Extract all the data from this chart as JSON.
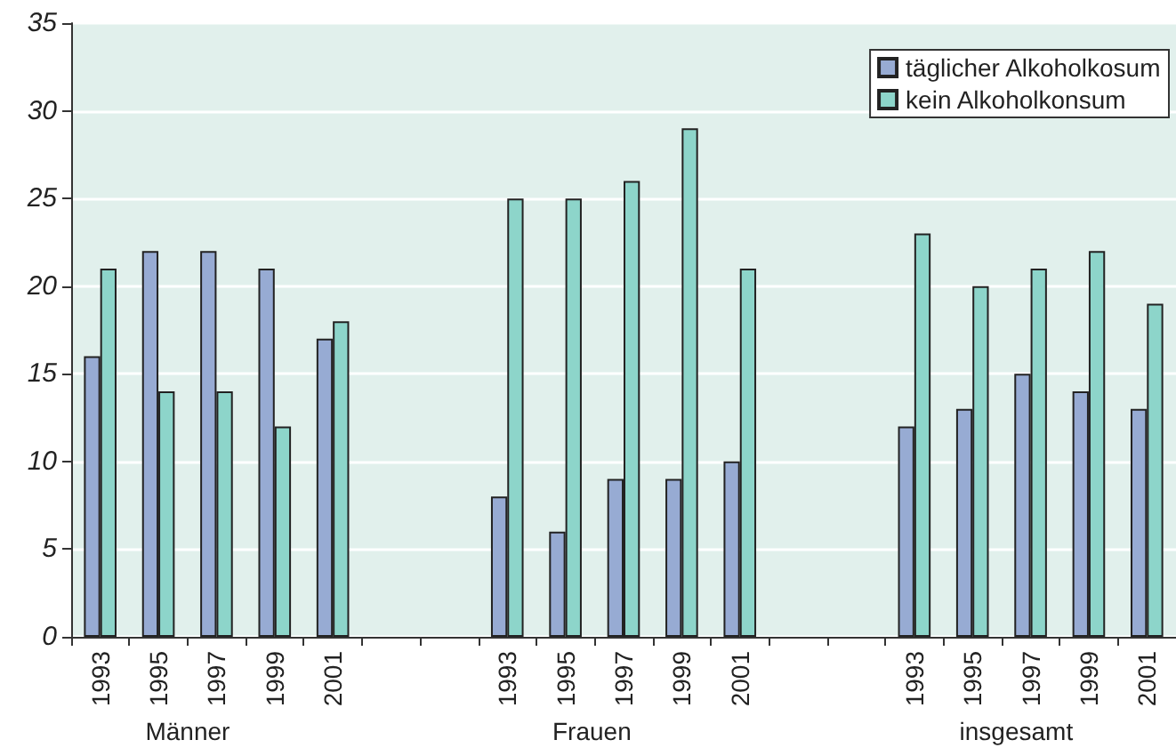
{
  "chart_data": {
    "type": "bar",
    "categories": [
      "1993",
      "1995",
      "1997",
      "1999",
      "2001",
      null,
      null,
      "1993",
      "1995",
      "1997",
      "1999",
      "2001",
      null,
      null,
      "1993",
      "1995",
      "1997",
      "1999",
      "2001"
    ],
    "series": [
      {
        "name": "täglicher Alkoholkosum",
        "color": "#97abd3",
        "values": [
          16,
          22,
          22,
          21,
          17,
          null,
          null,
          8,
          6,
          9,
          9,
          10,
          null,
          null,
          12,
          13,
          15,
          14,
          13
        ]
      },
      {
        "name": "kein Alkoholkonsum",
        "color": "#8dd5ca",
        "values": [
          21,
          14,
          14,
          12,
          18,
          null,
          null,
          25,
          25,
          26,
          29,
          21,
          null,
          null,
          23,
          20,
          21,
          22,
          19
        ]
      }
    ],
    "annotations": [
      "Männer",
      "Frauen",
      "insgesamt"
    ],
    "ylim": [
      0,
      35
    ],
    "yticks": [
      0,
      5,
      10,
      15,
      20,
      25,
      30,
      35
    ],
    "grid": "y",
    "legend": "top right"
  }
}
